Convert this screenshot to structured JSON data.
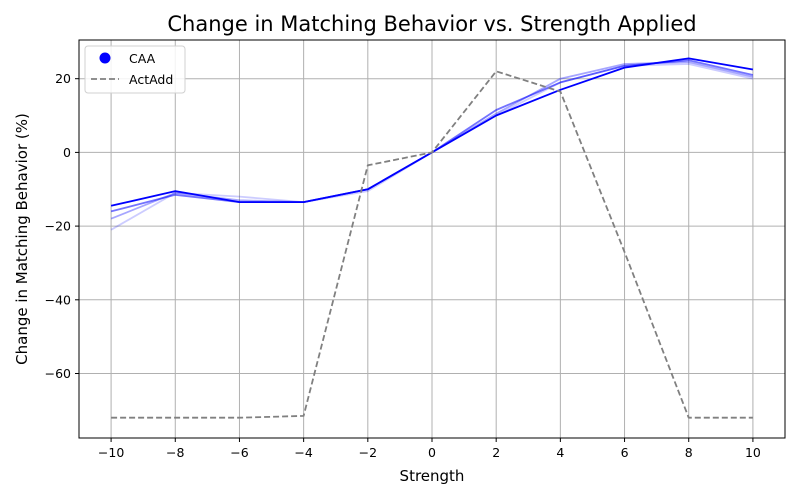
{
  "chart_data": {
    "type": "line",
    "title": "Change in Matching Behavior vs. Strength Applied",
    "xlabel": "Strength",
    "ylabel": "Change in Matching Behavior (%)",
    "xlim": [
      -11,
      11
    ],
    "ylim": [
      -77.5,
      30.5
    ],
    "xticks": [
      -10,
      -8,
      -6,
      -4,
      -2,
      0,
      2,
      4,
      6,
      8,
      10
    ],
    "yticks": [
      -60,
      -40,
      -20,
      0,
      20
    ],
    "grid": true,
    "legend": {
      "placement": "upper-left",
      "entries": [
        {
          "label": "CAA",
          "marker": "circle",
          "color": "#0000ff"
        },
        {
          "label": "ActAdd",
          "style": "dashed",
          "color": "#808080"
        }
      ]
    },
    "x": [
      -10,
      -8,
      -6,
      -4,
      -2,
      0,
      2,
      4,
      6,
      8,
      10
    ],
    "series": [
      {
        "group": "CAA",
        "color": "#0000ff",
        "opacity": 0.2,
        "style": "solid",
        "values": [
          -21,
          -11,
          -12,
          -13.5,
          -10.5,
          0,
          10,
          19,
          23.5,
          24,
          20
        ]
      },
      {
        "group": "CAA",
        "color": "#0000ff",
        "opacity": 0.35,
        "style": "solid",
        "values": [
          -18,
          -11,
          -13,
          -13.5,
          -10,
          0,
          10.5,
          20,
          24,
          24.5,
          20.5
        ]
      },
      {
        "group": "CAA",
        "color": "#0000ff",
        "opacity": 0.55,
        "style": "solid",
        "values": [
          -16,
          -11.5,
          -13.5,
          -13.5,
          -10,
          0,
          11.5,
          19,
          23.5,
          25,
          21
        ]
      },
      {
        "group": "CAA",
        "color": "#0000ff",
        "opacity": 1.0,
        "style": "solid",
        "values": [
          -14.5,
          -10.5,
          -13.5,
          -13.5,
          -10,
          0,
          10,
          17,
          23,
          25.5,
          22.5
        ]
      },
      {
        "group": "ActAdd",
        "color": "#808080",
        "opacity": 1.0,
        "style": "dashed",
        "values": [
          -72,
          -72,
          -72,
          -71.5,
          -3.5,
          0,
          22,
          16.5,
          -27,
          -72,
          -72
        ]
      }
    ]
  }
}
